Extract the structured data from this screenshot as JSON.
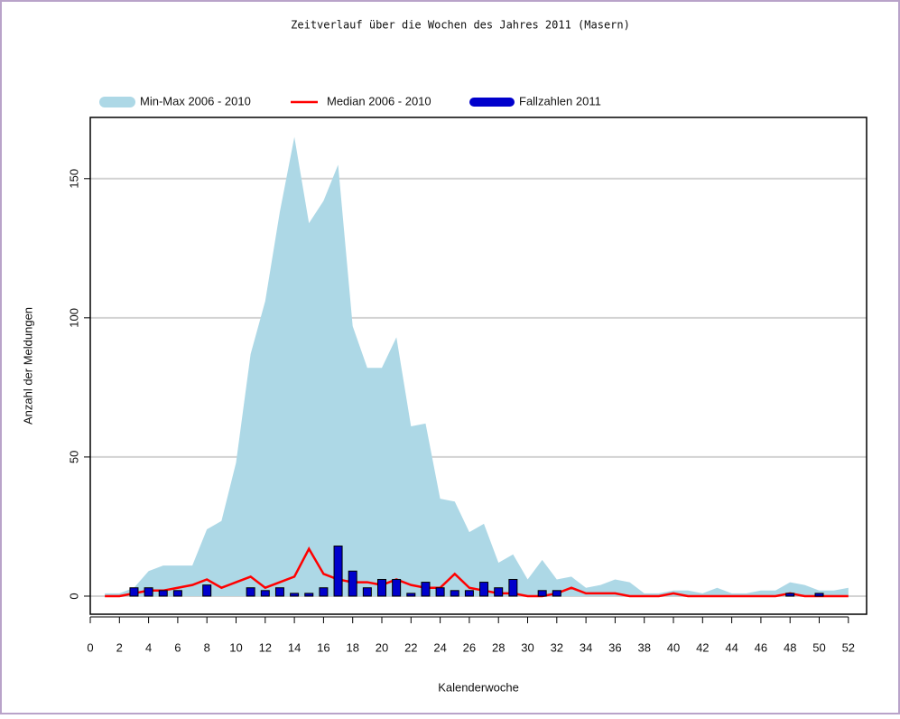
{
  "chart_data": {
    "type": "combo",
    "title": "Zeitverlauf über die Wochen des Jahres 2011 (Masern)",
    "x_label": "Kalenderwoche",
    "y_label": "Anzahl der Meldungen",
    "x": [
      1,
      2,
      3,
      4,
      5,
      6,
      7,
      8,
      9,
      10,
      11,
      12,
      13,
      14,
      15,
      16,
      17,
      18,
      19,
      20,
      21,
      22,
      23,
      24,
      25,
      26,
      27,
      28,
      29,
      30,
      31,
      32,
      33,
      34,
      35,
      36,
      37,
      38,
      39,
      40,
      41,
      42,
      43,
      44,
      45,
      46,
      47,
      48,
      49,
      50,
      51,
      52
    ],
    "series": [
      {
        "name": "Min-Max 2006 - 2010",
        "type": "band",
        "color": "#add8e6",
        "values_min": [
          0,
          0,
          0,
          0,
          0,
          0,
          0,
          0,
          0,
          0,
          0,
          0,
          0,
          0,
          0,
          0,
          0,
          0,
          0,
          0,
          0,
          0,
          0,
          0,
          0,
          0,
          0,
          0,
          0,
          0,
          0,
          0,
          0,
          0,
          0,
          0,
          0,
          0,
          0,
          0,
          0,
          0,
          0,
          0,
          0,
          0,
          0,
          0,
          0,
          0,
          0,
          0
        ],
        "values_max": [
          1,
          1,
          3,
          9,
          11,
          11,
          11,
          24,
          27,
          48,
          87,
          106,
          138,
          165,
          134,
          142,
          155,
          97,
          82,
          82,
          93,
          61,
          62,
          35,
          34,
          23,
          26,
          12,
          15,
          6,
          13,
          6,
          7,
          3,
          4,
          6,
          5,
          1,
          1,
          2,
          2,
          1,
          3,
          1,
          1,
          2,
          2,
          5,
          4,
          2,
          2,
          3
        ]
      },
      {
        "name": "Median 2006 - 2010",
        "type": "line",
        "color": "#ff0000",
        "values": [
          0,
          0,
          1,
          2,
          2,
          3,
          4,
          6,
          3,
          5,
          7,
          3,
          5,
          7,
          17,
          8,
          6,
          5,
          5,
          4,
          6,
          4,
          3,
          3,
          8,
          3,
          2,
          1,
          1,
          0,
          0,
          1,
          3,
          1,
          1,
          1,
          0,
          0,
          0,
          1,
          0,
          0,
          0,
          0,
          0,
          0,
          0,
          1,
          0,
          0,
          0,
          0
        ]
      },
      {
        "name": "Fallzahlen 2011",
        "type": "bar",
        "color": "#0000cc",
        "values": [
          0,
          0,
          3,
          3,
          2,
          2,
          0,
          4,
          0,
          0,
          3,
          2,
          3,
          1,
          1,
          3,
          18,
          9,
          3,
          6,
          6,
          1,
          5,
          3,
          2,
          2,
          5,
          3,
          6,
          0,
          2,
          2,
          0,
          0,
          0,
          0,
          0,
          0,
          0,
          0,
          0,
          0,
          0,
          0,
          0,
          0,
          0,
          1,
          0,
          1,
          0,
          0
        ]
      }
    ],
    "xlim": [
      0,
      53.25
    ],
    "xticks": [
      0,
      2,
      4,
      6,
      8,
      10,
      12,
      14,
      16,
      18,
      20,
      22,
      24,
      26,
      28,
      30,
      32,
      34,
      36,
      38,
      40,
      42,
      44,
      46,
      48,
      50,
      52
    ],
    "ylim": [
      -6.5,
      172
    ],
    "yticks": [
      0,
      50,
      100,
      150
    ],
    "grid": true,
    "legend": "top"
  }
}
